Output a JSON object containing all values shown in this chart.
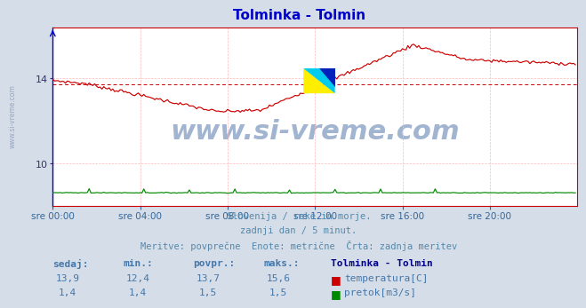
{
  "title": "Tolminka - Tolmin",
  "title_color": "#0000cc",
  "bg_color": "#d4dde8",
  "plot_bg_color": "#ffffff",
  "grid_color": "#ffbbbb",
  "xlabel": "",
  "ylabel": "",
  "xlim": [
    0,
    288
  ],
  "ylim_temp": [
    8.0,
    16.4
  ],
  "ylim_flow_secondary": [
    0,
    20
  ],
  "yticks_temp": [
    10,
    14
  ],
  "xtick_labels": [
    "sre 00:00",
    "sre 04:00",
    "sre 08:00",
    "sre 12:00",
    "sre 16:00",
    "sre 20:00"
  ],
  "xtick_positions": [
    0,
    48,
    96,
    144,
    192,
    240
  ],
  "avg_temp": 13.7,
  "temp_color": "#cc0000",
  "flow_color": "#008800",
  "avg_line_color": "#cc0000",
  "left_spine_color": "#0000cc",
  "right_spine_color": "#cc0000",
  "bottom_spine_color": "#cc0000",
  "top_spine_color": "#cc0000",
  "watermark_text": "www.si-vreme.com",
  "watermark_color": "#5577aa",
  "watermark_fontsize": 22,
  "footer_lines": [
    "Slovenija / reke in morje.",
    "zadnji dan / 5 minut.",
    "Meritve: povprečne  Enote: metrične  Črta: zadnja meritev"
  ],
  "footer_color": "#5588aa",
  "table_headers": [
    "sedaj:",
    "min.:",
    "povpr.:",
    "maks.:"
  ],
  "table_bold_header": "Tolminka - Tolmin",
  "table_row1": [
    "13,9",
    "12,4",
    "13,7",
    "15,6"
  ],
  "table_row2": [
    "1,4",
    "1,4",
    "1,5",
    "1,5"
  ],
  "table_label1": "temperatura[C]",
  "table_label2": "pretok[m3/s]",
  "table_color": "#4477aa",
  "table_bold_color": "#000088",
  "side_text": "www.si-vreme.com",
  "side_text_color": "#8899bb"
}
